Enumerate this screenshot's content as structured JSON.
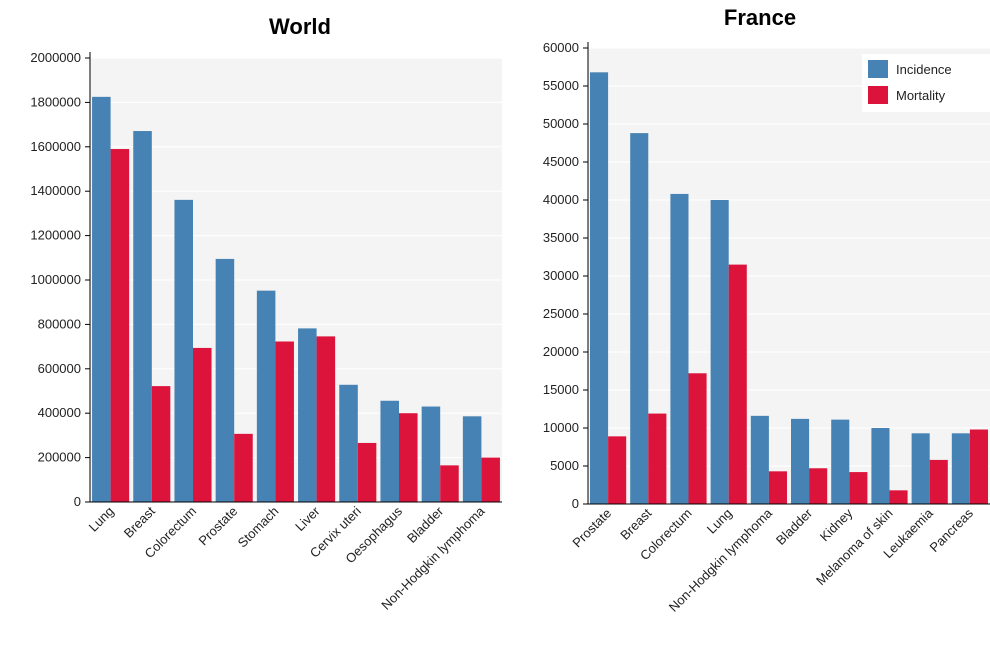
{
  "chart_data": [
    {
      "type": "bar",
      "title": "World",
      "categories": [
        "Lung",
        "Breast",
        "Colorectum",
        "Prostate",
        "Stomach",
        "Liver",
        "Cervix uteri",
        "Oesophagus",
        "Bladder",
        "Non-Hodgkin lymphoma"
      ],
      "series": [
        {
          "name": "Incidence",
          "color": "#4682b4",
          "values": [
            1825000,
            1671000,
            1361000,
            1095000,
            952000,
            782000,
            528000,
            456000,
            430000,
            386000
          ]
        },
        {
          "name": "Mortality",
          "color": "#dc143c",
          "values": [
            1590000,
            522000,
            694000,
            307000,
            723000,
            746000,
            266000,
            400000,
            165000,
            200000
          ]
        }
      ],
      "yticks": [
        "0",
        "200000",
        "400000",
        "600000",
        "800000",
        "1000000",
        "1200000",
        "1400000",
        "1600000",
        "1800000",
        "2000000"
      ],
      "ylim": [
        0,
        2000000
      ],
      "grid": true,
      "legend": "none"
    },
    {
      "type": "bar",
      "title": "France",
      "categories": [
        "Prostate",
        "Breast",
        "Colorectum",
        "Lung",
        "Non-Hodgkin lymphoma",
        "Bladder",
        "Kidney",
        "Melanoma of skin",
        "Leukaemia",
        "Pancreas"
      ],
      "series": [
        {
          "name": "Incidence",
          "color": "#4682b4",
          "values": [
            56800,
            48800,
            40800,
            40000,
            11600,
            11200,
            11100,
            10000,
            9300,
            9300
          ]
        },
        {
          "name": "Mortality",
          "color": "#dc143c",
          "values": [
            8900,
            11900,
            17200,
            31500,
            4300,
            4700,
            4200,
            1800,
            5800,
            9800
          ]
        }
      ],
      "yticks": [
        "0",
        "5000",
        "10000",
        "15000",
        "20000",
        "25000",
        "30000",
        "35000",
        "40000",
        "45000",
        "50000",
        "55000",
        "60000"
      ],
      "ylim": [
        0,
        60000
      ],
      "grid": true,
      "legend": "top-right"
    }
  ]
}
